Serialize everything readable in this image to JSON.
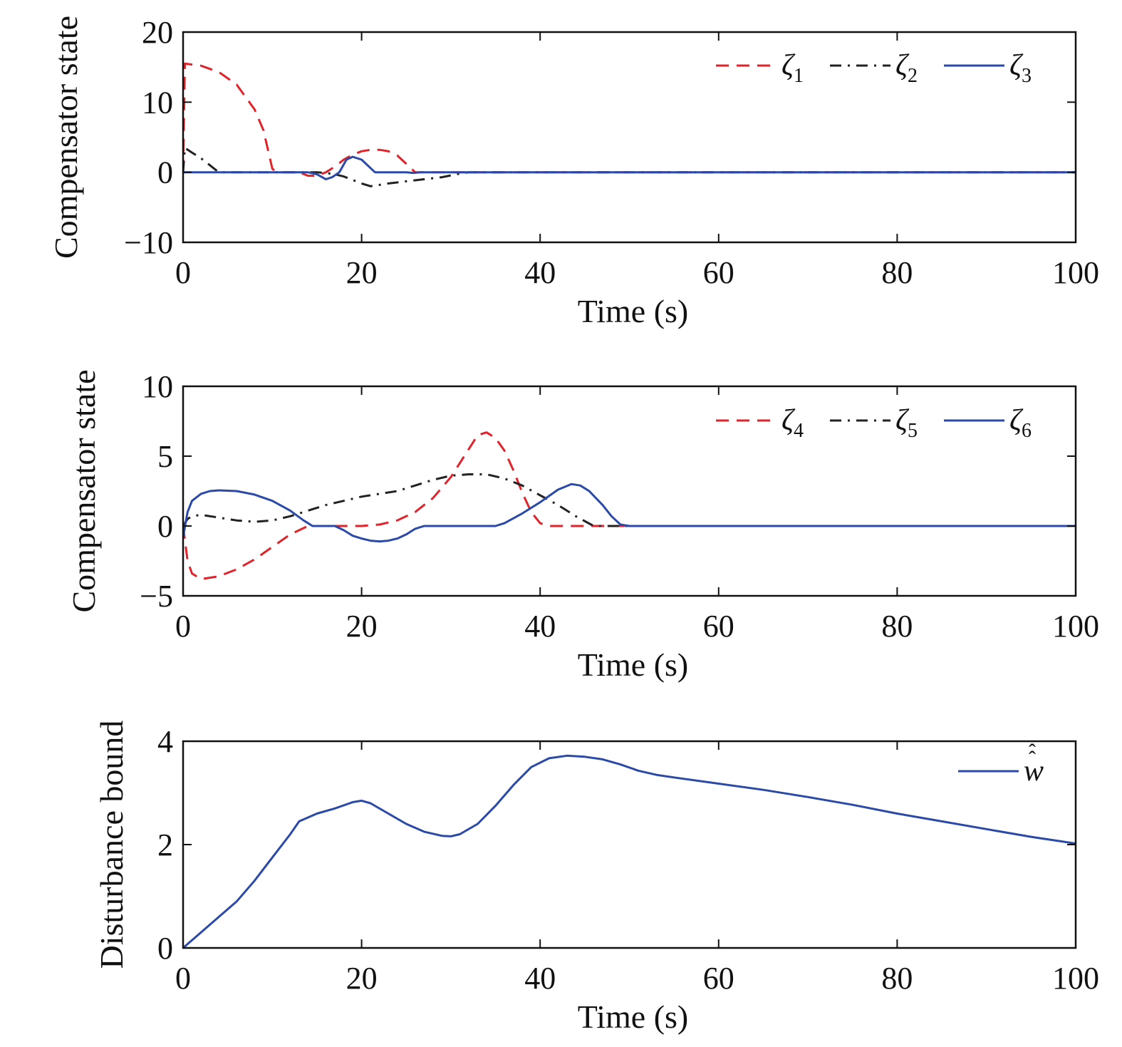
{
  "chart_data": [
    {
      "type": "line",
      "xlabel": "Time (s)",
      "ylabel": "Compensator state",
      "xlim": [
        0,
        100
      ],
      "ylim": [
        -10,
        20
      ],
      "xticks": [
        0,
        20,
        40,
        60,
        80,
        100
      ],
      "yticks": [
        -10,
        0,
        10,
        20
      ],
      "xtick_labels": [
        "0",
        "20",
        "40",
        "60",
        "80",
        "100"
      ],
      "ytick_labels": [
        "−10",
        "0",
        "10",
        "20"
      ],
      "legend_position": "top-right",
      "series": [
        {
          "name": "ζ",
          "sub": "1",
          "color": "#e0242b",
          "style": "dashed",
          "points": [
            [
              0,
              0
            ],
            [
              0.2,
              15.5
            ],
            [
              2,
              15.2
            ],
            [
              4,
              14.3
            ],
            [
              6,
              12.5
            ],
            [
              8,
              9
            ],
            [
              9,
              6
            ],
            [
              10,
              0.5
            ],
            [
              10.5,
              0
            ],
            [
              13,
              0
            ],
            [
              14,
              -0.5
            ],
            [
              15,
              -0.5
            ],
            [
              16,
              0
            ],
            [
              17,
              0.8
            ],
            [
              18,
              1.8
            ],
            [
              19,
              2.5
            ],
            [
              20,
              3
            ],
            [
              21,
              3.2
            ],
            [
              22,
              3.2
            ],
            [
              23,
              3
            ],
            [
              24,
              2.4
            ],
            [
              25,
              1.2
            ],
            [
              26,
              0
            ],
            [
              100,
              0
            ]
          ]
        },
        {
          "name": "ζ",
          "sub": "2",
          "color": "#222222",
          "style": "dashdot",
          "points": [
            [
              0,
              0
            ],
            [
              0.2,
              3.5
            ],
            [
              1,
              2.8
            ],
            [
              2,
              2
            ],
            [
              3,
              1
            ],
            [
              4,
              0
            ],
            [
              15,
              0
            ],
            [
              16,
              -0.1
            ],
            [
              17,
              -0.3
            ],
            [
              18,
              -0.6
            ],
            [
              19,
              -1.1
            ],
            [
              20,
              -1.6
            ],
            [
              21,
              -2
            ],
            [
              22,
              -1.8
            ],
            [
              23,
              -1.6
            ],
            [
              25,
              -1.3
            ],
            [
              27,
              -1
            ],
            [
              29,
              -0.7
            ],
            [
              31,
              -0.2
            ],
            [
              32,
              0
            ],
            [
              100,
              0
            ]
          ]
        },
        {
          "name": "ζ",
          "sub": "3",
          "color": "#2b4aa8",
          "style": "solid",
          "points": [
            [
              0,
              0
            ],
            [
              14,
              0
            ],
            [
              15,
              -0.3
            ],
            [
              16,
              -1
            ],
            [
              16.7,
              -0.7
            ],
            [
              17.5,
              0
            ],
            [
              18.3,
              1.8
            ],
            [
              19,
              2.2
            ],
            [
              20,
              1.8
            ],
            [
              21,
              0.6
            ],
            [
              21.5,
              0
            ],
            [
              25,
              0
            ],
            [
              25.8,
              -0.1
            ],
            [
              26.5,
              0
            ],
            [
              100,
              0
            ]
          ]
        }
      ]
    },
    {
      "type": "line",
      "xlabel": "Time (s)",
      "ylabel": "Compensator state",
      "xlim": [
        0,
        100
      ],
      "ylim": [
        -5,
        10
      ],
      "xticks": [
        0,
        20,
        40,
        60,
        80,
        100
      ],
      "yticks": [
        -5,
        0,
        5,
        10
      ],
      "xtick_labels": [
        "0",
        "20",
        "40",
        "60",
        "80",
        "100"
      ],
      "ytick_labels": [
        "−5",
        "0",
        "5",
        "10"
      ],
      "legend_position": "top-right",
      "series": [
        {
          "name": "ζ",
          "sub": "4",
          "color": "#e0242b",
          "style": "dashed",
          "points": [
            [
              0,
              0
            ],
            [
              0.5,
              -2.5
            ],
            [
              1,
              -3.4
            ],
            [
              2,
              -3.8
            ],
            [
              4,
              -3.6
            ],
            [
              6,
              -3.1
            ],
            [
              8,
              -2.4
            ],
            [
              10,
              -1.5
            ],
            [
              12,
              -0.6
            ],
            [
              14,
              0
            ],
            [
              20,
              0
            ],
            [
              22,
              0.1
            ],
            [
              24,
              0.4
            ],
            [
              26,
              1
            ],
            [
              28,
              2
            ],
            [
              30,
              3.5
            ],
            [
              32,
              5.5
            ],
            [
              33,
              6.5
            ],
            [
              34,
              6.7
            ],
            [
              35,
              6.3
            ],
            [
              36,
              5.4
            ],
            [
              37,
              4
            ],
            [
              38,
              2.4
            ],
            [
              39,
              1
            ],
            [
              40,
              0.2
            ],
            [
              41,
              0
            ],
            [
              100,
              0
            ]
          ]
        },
        {
          "name": "ζ",
          "sub": "5",
          "color": "#222222",
          "style": "dashdot",
          "points": [
            [
              0,
              0
            ],
            [
              0.5,
              0.5
            ],
            [
              1,
              0.7
            ],
            [
              2,
              0.8
            ],
            [
              4,
              0.6
            ],
            [
              6,
              0.4
            ],
            [
              8,
              0.3
            ],
            [
              10,
              0.4
            ],
            [
              12,
              0.7
            ],
            [
              14,
              1.1
            ],
            [
              16,
              1.5
            ],
            [
              18,
              1.8
            ],
            [
              20,
              2.1
            ],
            [
              22,
              2.3
            ],
            [
              24,
              2.5
            ],
            [
              26,
              2.9
            ],
            [
              28,
              3.3
            ],
            [
              30,
              3.6
            ],
            [
              32,
              3.7
            ],
            [
              34,
              3.7
            ],
            [
              36,
              3.4
            ],
            [
              38,
              2.9
            ],
            [
              40,
              2.2
            ],
            [
              42,
              1.5
            ],
            [
              44,
              0.7
            ],
            [
              46,
              0
            ],
            [
              100,
              0
            ]
          ]
        },
        {
          "name": "ζ",
          "sub": "6",
          "color": "#2b4aa8",
          "style": "solid",
          "points": [
            [
              0,
              -0.8
            ],
            [
              0.5,
              1
            ],
            [
              1,
              1.8
            ],
            [
              2,
              2.3
            ],
            [
              3,
              2.5
            ],
            [
              4,
              2.55
            ],
            [
              6,
              2.5
            ],
            [
              8,
              2.25
            ],
            [
              10,
              1.8
            ],
            [
              12,
              1.1
            ],
            [
              13.5,
              0.4
            ],
            [
              14.5,
              0
            ],
            [
              17,
              0
            ],
            [
              18,
              -0.3
            ],
            [
              19,
              -0.7
            ],
            [
              20,
              -0.9
            ],
            [
              21,
              -1.05
            ],
            [
              22,
              -1.1
            ],
            [
              23,
              -1.05
            ],
            [
              24,
              -0.9
            ],
            [
              25,
              -0.6
            ],
            [
              26,
              -0.2
            ],
            [
              27,
              0
            ],
            [
              35,
              0
            ],
            [
              36,
              0.2
            ],
            [
              38,
              0.9
            ],
            [
              40,
              1.7
            ],
            [
              42,
              2.6
            ],
            [
              43.5,
              3
            ],
            [
              44.5,
              2.9
            ],
            [
              45.5,
              2.5
            ],
            [
              47,
              1.5
            ],
            [
              48,
              0.7
            ],
            [
              49,
              0.1
            ],
            [
              50,
              0
            ],
            [
              100,
              0
            ]
          ]
        }
      ]
    },
    {
      "type": "line",
      "xlabel": "Time (s)",
      "ylabel": "Disturbance bound",
      "xlim": [
        0,
        100
      ],
      "ylim": [
        0,
        4
      ],
      "xticks": [
        0,
        20,
        40,
        60,
        80,
        100
      ],
      "yticks": [
        0,
        2,
        4
      ],
      "xtick_labels": [
        "0",
        "20",
        "40",
        "60",
        "80",
        "100"
      ],
      "ytick_labels": [
        "0",
        "2",
        "4"
      ],
      "legend_position": "top-right",
      "series": [
        {
          "name": "w",
          "hat": "double",
          "color": "#2b4aa8",
          "style": "solid",
          "points": [
            [
              0,
              0
            ],
            [
              2,
              0.3
            ],
            [
              4,
              0.6
            ],
            [
              6,
              0.9
            ],
            [
              8,
              1.3
            ],
            [
              10,
              1.75
            ],
            [
              12,
              2.2
            ],
            [
              13,
              2.45
            ],
            [
              15,
              2.6
            ],
            [
              17,
              2.7
            ],
            [
              19,
              2.82
            ],
            [
              20,
              2.85
            ],
            [
              21,
              2.8
            ],
            [
              23,
              2.6
            ],
            [
              25,
              2.4
            ],
            [
              27,
              2.25
            ],
            [
              29,
              2.17
            ],
            [
              30,
              2.16
            ],
            [
              31,
              2.2
            ],
            [
              33,
              2.4
            ],
            [
              35,
              2.75
            ],
            [
              37,
              3.15
            ],
            [
              39,
              3.5
            ],
            [
              41,
              3.67
            ],
            [
              43,
              3.72
            ],
            [
              45,
              3.7
            ],
            [
              47,
              3.65
            ],
            [
              49,
              3.55
            ],
            [
              51,
              3.43
            ],
            [
              53,
              3.35
            ],
            [
              55,
              3.3
            ],
            [
              60,
              3.18
            ],
            [
              65,
              3.06
            ],
            [
              70,
              2.92
            ],
            [
              75,
              2.77
            ],
            [
              80,
              2.6
            ],
            [
              85,
              2.45
            ],
            [
              90,
              2.3
            ],
            [
              95,
              2.15
            ],
            [
              100,
              2.02
            ]
          ]
        }
      ]
    }
  ]
}
